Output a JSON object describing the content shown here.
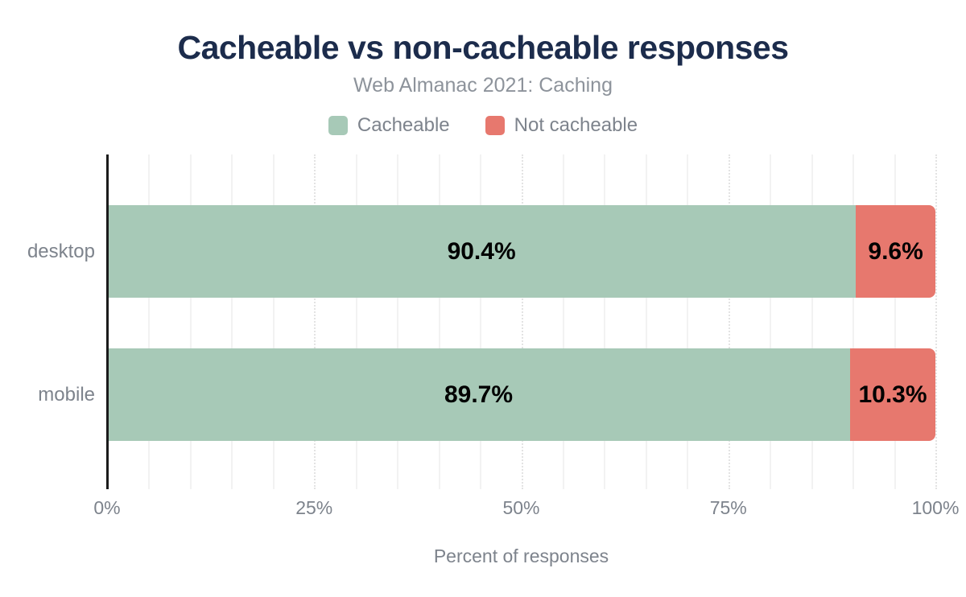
{
  "chart_data": {
    "type": "bar",
    "orientation": "horizontal",
    "stacked": true,
    "title": "Cacheable vs non-cacheable responses",
    "subtitle": "Web Almanac 2021: Caching",
    "categories": [
      "desktop",
      "mobile"
    ],
    "series": [
      {
        "name": "Cacheable",
        "color": "#a7c9b7",
        "values": [
          90.4,
          89.7
        ],
        "labels": [
          "90.4%",
          "89.7%"
        ]
      },
      {
        "name": "Not cacheable",
        "color": "#e7786e",
        "values": [
          9.6,
          10.3
        ],
        "labels": [
          "9.6%",
          "10.3%"
        ]
      }
    ],
    "xlabel": "Percent of responses",
    "xlim": [
      0,
      100
    ],
    "x_ticks": [
      {
        "value": 0,
        "label": "0%"
      },
      {
        "value": 25,
        "label": "25%"
      },
      {
        "value": 50,
        "label": "50%"
      },
      {
        "value": 75,
        "label": "75%"
      },
      {
        "value": 100,
        "label": "100%"
      }
    ],
    "grid": {
      "minor_step": 5,
      "major_step": 25,
      "shown": true
    },
    "legend_position": "top",
    "colors": {
      "title": "#1c2c4c",
      "subtitle": "#8d939b",
      "axis_text": "#7d838c",
      "value_label": "#000000",
      "axis_line": "#1b1b1b"
    }
  }
}
